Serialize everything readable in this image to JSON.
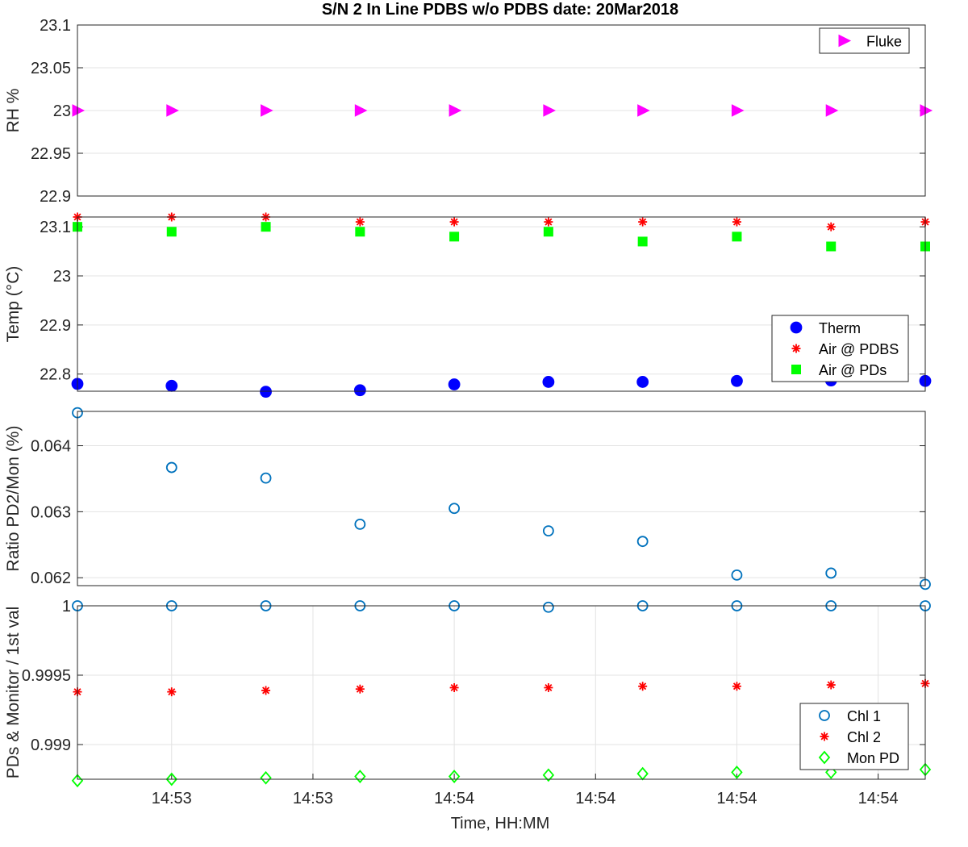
{
  "figure": {
    "title": "S/N 2 In Line PDBS w/o PDBS date: 20Mar2018",
    "xlabel": "Time, HH:MM"
  },
  "chart_data": [
    {
      "type": "scatter",
      "ylabel": "RH %",
      "ylim": [
        22.9,
        23.1
      ],
      "yticks": [
        22.9,
        22.95,
        23,
        23.05,
        23.1
      ],
      "ytick_labels": [
        "22.9",
        "22.95",
        "23",
        "23.05",
        "23.1"
      ],
      "xlim": [
        0,
        9
      ],
      "grid": true,
      "legend_position": "top-right",
      "series": [
        {
          "name": "Fluke",
          "marker": "triangle-right",
          "color": "#ff00ff",
          "filled": true,
          "x": [
            0,
            1,
            2,
            3,
            4,
            5,
            6,
            7,
            8,
            9
          ],
          "values": [
            23,
            23,
            23,
            23,
            23,
            23,
            23,
            23,
            23,
            23
          ]
        }
      ]
    },
    {
      "type": "scatter",
      "ylabel": "Temp (°C)",
      "ylim": [
        22.765,
        23.12
      ],
      "yticks": [
        22.8,
        22.9,
        23,
        23.1
      ],
      "ytick_labels": [
        "22.8",
        "22.9",
        "23",
        "23.1"
      ],
      "xlim": [
        0,
        9
      ],
      "grid": true,
      "legend_position": "bottom-right",
      "series": [
        {
          "name": "Therm",
          "marker": "circle",
          "color": "#0000ff",
          "filled": true,
          "x": [
            0,
            1,
            2,
            3,
            4,
            5,
            6,
            7,
            8,
            9
          ],
          "values": [
            22.78,
            22.776,
            22.764,
            22.767,
            22.779,
            22.784,
            22.784,
            22.786,
            22.787,
            22.786
          ]
        },
        {
          "name": "Air @ PDBS",
          "marker": "asterisk",
          "color": "#ff0000",
          "filled": false,
          "x": [
            0,
            1,
            2,
            3,
            4,
            5,
            6,
            7,
            8,
            9
          ],
          "values": [
            23.12,
            23.12,
            23.12,
            23.11,
            23.11,
            23.11,
            23.11,
            23.11,
            23.1,
            23.11
          ]
        },
        {
          "name": "Air @ PDs",
          "marker": "square",
          "color": "#00ff00",
          "filled": true,
          "x": [
            0,
            1,
            2,
            3,
            4,
            5,
            6,
            7,
            8,
            9
          ],
          "values": [
            23.1,
            23.09,
            23.1,
            23.09,
            23.08,
            23.09,
            23.07,
            23.08,
            23.06,
            23.06
          ]
        }
      ]
    },
    {
      "type": "scatter",
      "ylabel": "Ratio PD2/Mon (%)",
      "ylim": [
        0.06188,
        0.06452
      ],
      "yticks": [
        0.062,
        0.063,
        0.064
      ],
      "ytick_labels": [
        "0.062",
        "0.063",
        "0.064"
      ],
      "xlim": [
        0,
        9
      ],
      "grid": true,
      "series": [
        {
          "name": "",
          "marker": "circle",
          "color": "#0072bd",
          "filled": false,
          "x": [
            0,
            1,
            2,
            3,
            4,
            5,
            6,
            7,
            8,
            9
          ],
          "values": [
            0.0645,
            0.06367,
            0.06351,
            0.06281,
            0.06305,
            0.06271,
            0.06255,
            0.06204,
            0.06207,
            0.0619
          ]
        }
      ]
    },
    {
      "type": "scatter",
      "ylabel": "PDs & Monitor / 1st val",
      "ylim": [
        0.99875,
        1.0
      ],
      "yticks": [
        0.999,
        0.9995,
        1
      ],
      "ytick_labels": [
        "0.999",
        "0.9995",
        "1"
      ],
      "xlim": [
        0,
        9
      ],
      "xticks": [
        1,
        2.5,
        4,
        5.5,
        7,
        8.5
      ],
      "xtick_labels": [
        "14:53",
        "14:53",
        "14:54",
        "14:54",
        "14:54",
        "14:54"
      ],
      "grid": true,
      "legend_position": "bottom-right",
      "series": [
        {
          "name": "Chl 1",
          "marker": "circle",
          "color": "#0072bd",
          "filled": false,
          "x": [
            0,
            1,
            2,
            3,
            4,
            5,
            6,
            7,
            8,
            9
          ],
          "values": [
            1.0,
            1.0,
            1.0,
            1.0,
            1.0,
            0.99999,
            1.0,
            1.0,
            1.0,
            1.0
          ]
        },
        {
          "name": "Chl 2",
          "marker": "asterisk",
          "color": "#ff0000",
          "filled": false,
          "x": [
            0,
            1,
            2,
            3,
            4,
            5,
            6,
            7,
            8,
            9
          ],
          "values": [
            0.99938,
            0.99938,
            0.99939,
            0.9994,
            0.99941,
            0.99941,
            0.99942,
            0.99942,
            0.99943,
            0.99944
          ]
        },
        {
          "name": "Mon PD",
          "marker": "diamond",
          "color": "#00ff00",
          "filled": false,
          "x": [
            0,
            1,
            2,
            3,
            4,
            5,
            6,
            7,
            8,
            9
          ],
          "values": [
            0.99874,
            0.99875,
            0.99876,
            0.99877,
            0.99877,
            0.99878,
            0.99879,
            0.9988,
            0.9988,
            0.99882
          ]
        }
      ]
    }
  ]
}
